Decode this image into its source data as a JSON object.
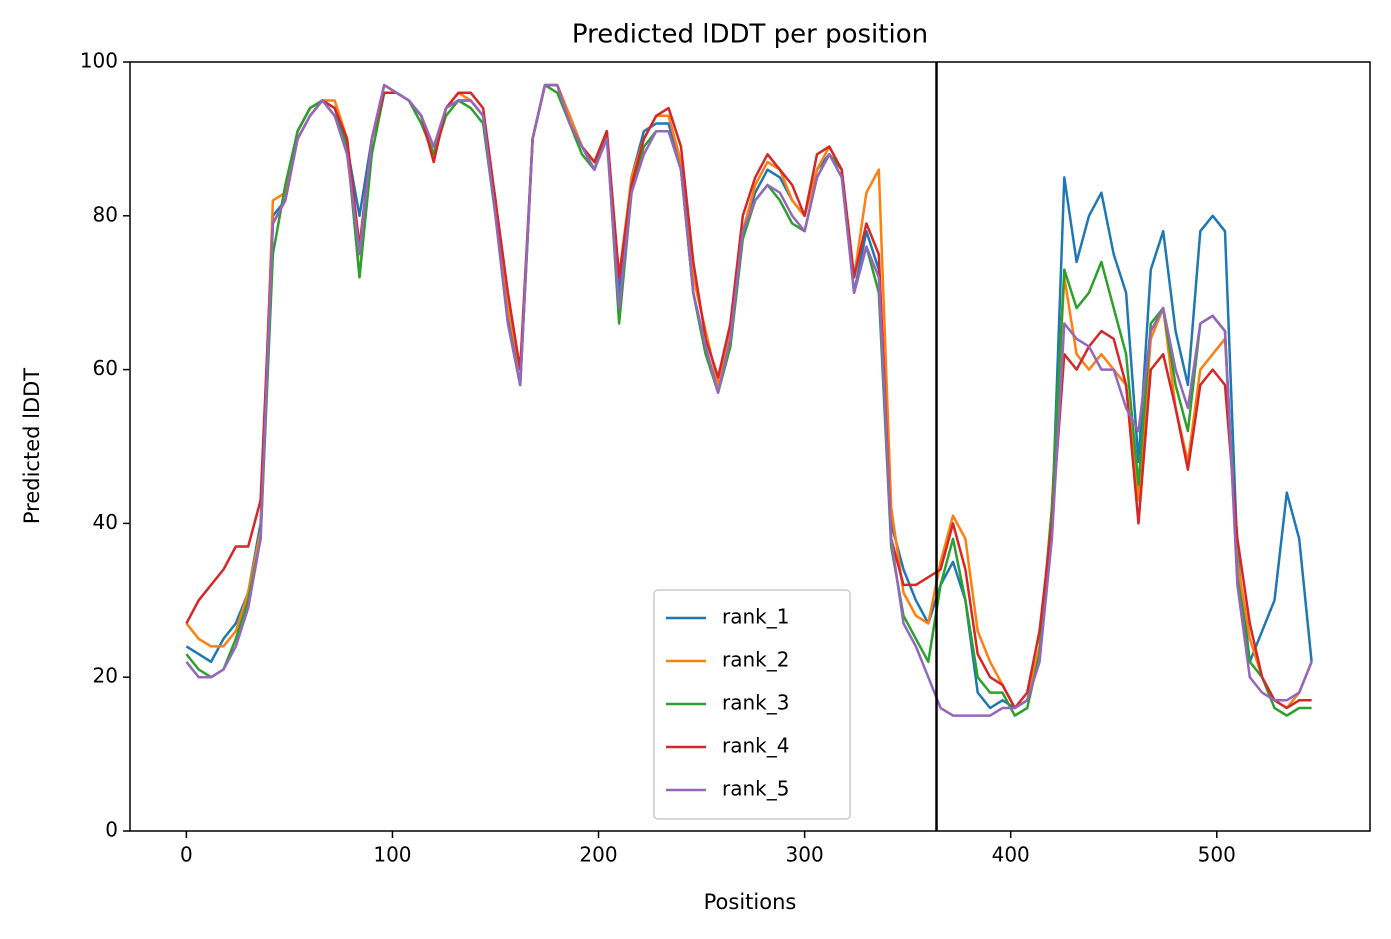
{
  "chart_data": {
    "type": "line",
    "title": "Predicted lDDT per position",
    "x_label": "Positions",
    "y_label": "Predicted lDDT",
    "x": [
      0,
      6,
      12,
      18,
      24,
      30,
      36,
      42,
      48,
      54,
      60,
      66,
      72,
      78,
      84,
      90,
      96,
      102,
      108,
      114,
      120,
      126,
      132,
      138,
      144,
      150,
      156,
      162,
      168,
      174,
      180,
      186,
      192,
      198,
      204,
      210,
      216,
      222,
      228,
      234,
      240,
      246,
      252,
      258,
      264,
      270,
      276,
      282,
      288,
      294,
      300,
      306,
      312,
      318,
      324,
      330,
      336,
      342,
      348,
      354,
      360,
      366,
      372,
      378,
      384,
      390,
      396,
      402,
      408,
      414,
      420,
      426,
      432,
      438,
      444,
      450,
      456,
      462,
      468,
      474,
      480,
      486,
      492,
      498,
      504,
      510,
      516,
      522,
      528,
      534,
      540,
      546
    ],
    "series": [
      {
        "name": "rank_1",
        "color": "#1f77b4",
        "values": [
          24,
          23,
          22,
          25,
          27,
          31,
          40,
          80,
          82,
          91,
          94,
          95,
          94,
          89,
          80,
          90,
          97,
          96,
          95,
          93,
          88,
          94,
          95,
          95,
          93,
          82,
          67,
          58,
          90,
          97,
          97,
          93,
          89,
          86,
          91,
          70,
          85,
          91,
          92,
          92,
          86,
          70,
          62,
          58,
          65,
          78,
          83,
          86,
          85,
          82,
          80,
          86,
          88,
          86,
          70,
          78,
          73,
          40,
          34,
          30,
          27,
          32,
          35,
          30,
          18,
          16,
          17,
          16,
          17,
          22,
          40,
          85,
          74,
          80,
          83,
          75,
          70,
          48,
          73,
          78,
          65,
          58,
          78,
          80,
          78,
          36,
          22,
          26,
          30,
          44,
          38,
          22
        ]
      },
      {
        "name": "rank_2",
        "color": "#ff7f0e",
        "values": [
          27,
          25,
          24,
          24,
          26,
          31,
          39,
          82,
          83,
          91,
          94,
          95,
          95,
          90,
          72,
          90,
          97,
          96,
          95,
          93,
          88,
          94,
          96,
          95,
          93,
          82,
          68,
          60,
          90,
          97,
          97,
          93,
          89,
          87,
          91,
          72,
          85,
          90,
          93,
          93,
          87,
          72,
          65,
          58,
          65,
          78,
          84,
          87,
          86,
          82,
          80,
          86,
          89,
          86,
          72,
          83,
          86,
          42,
          31,
          28,
          27,
          35,
          41,
          38,
          26,
          22,
          19,
          16,
          17,
          24,
          42,
          72,
          62,
          60,
          62,
          60,
          58,
          43,
          64,
          68,
          55,
          48,
          60,
          62,
          64,
          35,
          25,
          20,
          17,
          16,
          18,
          22
        ]
      },
      {
        "name": "rank_3",
        "color": "#2ca02c",
        "values": [
          23,
          21,
          20,
          21,
          25,
          30,
          38,
          75,
          84,
          91,
          94,
          95,
          93,
          89,
          72,
          88,
          96,
          96,
          95,
          92,
          88,
          93,
          95,
          94,
          92,
          80,
          66,
          58,
          90,
          97,
          96,
          92,
          88,
          86,
          91,
          66,
          83,
          89,
          91,
          91,
          86,
          70,
          62,
          57,
          63,
          77,
          82,
          84,
          82,
          79,
          78,
          85,
          88,
          86,
          70,
          76,
          70,
          37,
          28,
          25,
          22,
          32,
          38,
          30,
          20,
          18,
          18,
          15,
          16,
          23,
          42,
          73,
          68,
          70,
          74,
          68,
          62,
          45,
          66,
          68,
          58,
          52,
          66,
          67,
          65,
          33,
          22,
          20,
          16,
          15,
          16,
          16
        ]
      },
      {
        "name": "rank_4",
        "color": "#d62728",
        "values": [
          27,
          30,
          32,
          34,
          37,
          37,
          43,
          79,
          82,
          90,
          93,
          95,
          94,
          90,
          76,
          90,
          96,
          96,
          95,
          93,
          87,
          94,
          96,
          96,
          94,
          82,
          70,
          60,
          90,
          97,
          97,
          92,
          89,
          87,
          91,
          72,
          84,
          90,
          93,
          94,
          89,
          74,
          64,
          59,
          66,
          80,
          85,
          88,
          86,
          84,
          80,
          88,
          89,
          86,
          72,
          79,
          75,
          38,
          32,
          32,
          33,
          34,
          40,
          34,
          23,
          20,
          19,
          16,
          18,
          26,
          40,
          62,
          60,
          63,
          65,
          64,
          58,
          40,
          60,
          62,
          55,
          47,
          58,
          60,
          58,
          38,
          27,
          20,
          17,
          16,
          17,
          17
        ]
      },
      {
        "name": "rank_5",
        "color": "#9467bd",
        "values": [
          22,
          20,
          20,
          21,
          24,
          29,
          38,
          79,
          82,
          90,
          93,
          95,
          93,
          88,
          75,
          90,
          97,
          96,
          95,
          93,
          89,
          94,
          95,
          95,
          93,
          80,
          66,
          58,
          90,
          97,
          97,
          92,
          89,
          86,
          90,
          68,
          83,
          88,
          91,
          91,
          86,
          70,
          63,
          57,
          64,
          78,
          82,
          84,
          83,
          80,
          78,
          85,
          88,
          85,
          70,
          76,
          72,
          38,
          27,
          24,
          20,
          16,
          15,
          15,
          15,
          15,
          16,
          16,
          17,
          22,
          38,
          66,
          64,
          63,
          60,
          60,
          55,
          52,
          65,
          68,
          60,
          55,
          66,
          67,
          65,
          32,
          20,
          18,
          17,
          17,
          18,
          22
        ]
      }
    ],
    "xlim": [
      -27.35,
      574.35
    ],
    "ylim": [
      0,
      100
    ],
    "xticks": [
      0,
      100,
      200,
      300,
      400,
      500
    ],
    "yticks": [
      0,
      20,
      40,
      60,
      80,
      100
    ],
    "vline": 364,
    "legend": "lower center"
  }
}
